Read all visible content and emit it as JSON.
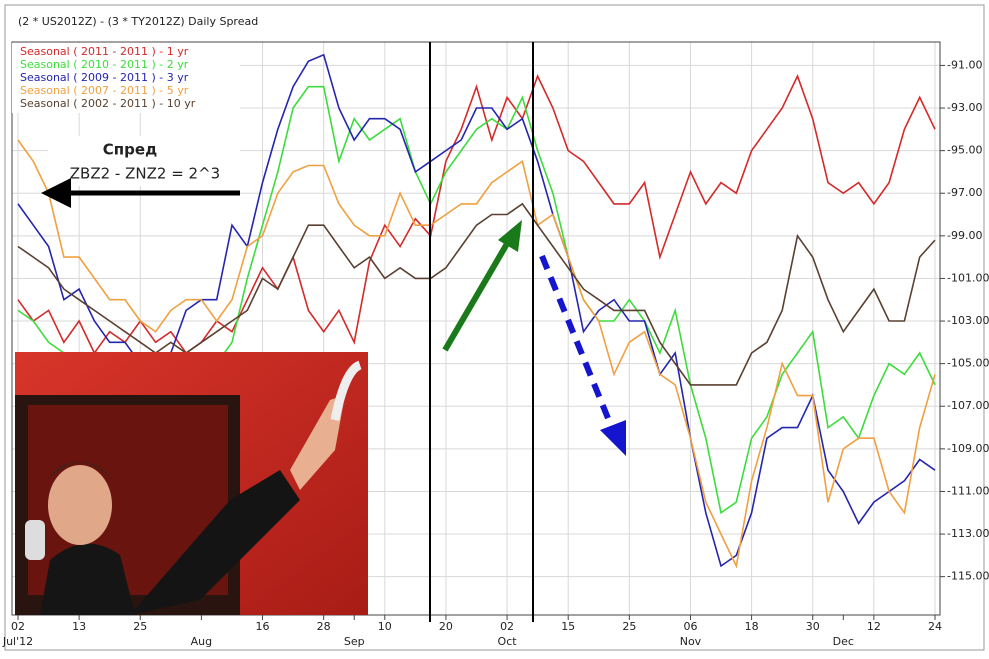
{
  "chart_data": {
    "type": "line",
    "title": "(2 * US2012Z) - (3 * TY2012Z) Daily Spread",
    "categories": [
      "02",
      null,
      null,
      null,
      "13",
      null,
      null,
      null,
      "25",
      null,
      null,
      null,
      null,
      null,
      null,
      null,
      "16",
      null,
      null,
      null,
      "28",
      null,
      null,
      null,
      "10",
      null,
      null,
      null,
      "20",
      null,
      null,
      null,
      "02",
      null,
      null,
      null,
      "15",
      null,
      null,
      null,
      "25",
      null,
      null,
      null,
      "06",
      null,
      null,
      null,
      "18",
      null,
      null,
      null,
      "30",
      null,
      null,
      null,
      "12",
      null,
      null,
      null,
      "24"
    ],
    "x_month_labels": [
      "Jul'12",
      null,
      null,
      null,
      null,
      null,
      null,
      null,
      null,
      null,
      null,
      null,
      "Aug",
      null,
      null,
      null,
      null,
      null,
      null,
      null,
      null,
      null,
      "Sep",
      null,
      null,
      null,
      null,
      null,
      null,
      null,
      null,
      null,
      "Oct",
      null,
      null,
      null,
      null,
      null,
      null,
      null,
      null,
      null,
      null,
      null,
      "Nov",
      null,
      null,
      null,
      null,
      null,
      null,
      null,
      null,
      null,
      "Dec",
      null,
      null,
      null,
      null,
      null,
      null
    ],
    "ylim": [
      -116.8,
      -89.9
    ],
    "yticks": [
      {
        "value": -91,
        "label": "-91.00"
      },
      {
        "value": -93,
        "label": "-93.00"
      },
      {
        "value": -95,
        "label": "-95.00"
      },
      {
        "value": -97,
        "label": "-97.00"
      },
      {
        "value": -99,
        "label": "-99.00"
      },
      {
        "value": -101,
        "label": "-101.00"
      },
      {
        "value": -103,
        "label": "-103.00"
      },
      {
        "value": -105,
        "label": "-105.00"
      },
      {
        "value": -107,
        "label": "-107.00"
      },
      {
        "value": -109,
        "label": "-109.00"
      },
      {
        "value": -111,
        "label": "-111.00"
      },
      {
        "value": -113,
        "label": "-113.00"
      },
      {
        "value": -115,
        "label": "-115.00"
      }
    ],
    "grid": true,
    "legend": "top-left",
    "annotations": [
      "Спред",
      "ZBZ2 - ZNZ2 = 2^3"
    ],
    "series": [
      {
        "name": "Seasonal ( 2011 - 2011 ) - 1 yr",
        "color": "#d42a2a",
        "values": [
          -102,
          -103,
          -102.5,
          -104,
          -103,
          -104.5,
          -103.5,
          -104,
          -103,
          -104,
          -103.5,
          -104.5,
          -104,
          -103,
          -103.5,
          -102,
          -100.5,
          -101.5,
          -100,
          -102.5,
          -103.5,
          -102.5,
          -104,
          -100.2,
          -98.5,
          -99.5,
          -98.2,
          -99,
          -95.5,
          -94,
          -92,
          -94.5,
          -92.5,
          -93.5,
          -91.5,
          -93,
          -95,
          -95.5,
          -96.5,
          -97.5,
          -97.5,
          -96.5,
          -100,
          -98,
          -96,
          -97.5,
          -96.5,
          -97,
          -95,
          -94,
          -93,
          -91.5,
          -93.5,
          -96.5,
          -97,
          -96.5,
          -97.5,
          -96.5,
          -94,
          -92.5,
          -94
        ]
      },
      {
        "name": "Seasonal ( 2010 - 2011 ) - 2 yr",
        "color": "#3ddc3d",
        "values": [
          -102.5,
          -103,
          -104,
          -104.5,
          -105,
          -105,
          -105.5,
          -106,
          -106,
          -106.5,
          -106,
          -106,
          -105.5,
          -105,
          -104,
          -101,
          -98.5,
          -96,
          -93,
          -92,
          -92,
          -95.5,
          -93.5,
          -94.5,
          -94,
          -93.5,
          -96,
          -97.5,
          -96,
          -95,
          -94,
          -93.5,
          -94,
          -92.5,
          -95,
          -97,
          -100,
          -102,
          -103,
          -103,
          -102,
          -103,
          -104.5,
          -102.5,
          -106,
          -108.5,
          -112,
          -111.5,
          -108.5,
          -107.5,
          -105.5,
          -104.5,
          -103.5,
          -108,
          -107.5,
          -108.5,
          -106.5,
          -105,
          -105.5,
          -104.5,
          -106
        ]
      },
      {
        "name": "Seasonal ( 2009 - 2011 ) - 3 yr",
        "color": "#2525b0",
        "values": [
          -97.5,
          -98.5,
          -99.5,
          -102,
          -101.5,
          -103,
          -104,
          -104,
          -105,
          -105.5,
          -104.5,
          -102.5,
          -102,
          -102,
          -98.5,
          -99.5,
          -96.5,
          -94,
          -92,
          -90.8,
          -90.5,
          -93,
          -94.5,
          -93.5,
          -93.5,
          -94,
          -96,
          -95.5,
          -95,
          -94.5,
          -93,
          -93,
          -94,
          -93.5,
          -95.5,
          -98,
          -100,
          -103.5,
          -102.5,
          -102,
          -103,
          -103,
          -105.5,
          -104.5,
          -108.5,
          -112,
          -114.5,
          -114,
          -112,
          -108.5,
          -108,
          -108,
          -106.5,
          -110,
          -111,
          -112.5,
          -111.5,
          -111,
          -110.5,
          -109.5,
          -110
        ]
      },
      {
        "name": "Seasonal ( 2007 - 2011 ) - 5 yr",
        "color": "#f0a040",
        "values": [
          -94.5,
          -95.5,
          -97,
          -100,
          -100,
          -101,
          -102,
          -102,
          -103,
          -103.5,
          -102.5,
          -102,
          -102,
          -103,
          -102,
          -99.5,
          -99,
          -97,
          -96,
          -95.7,
          -95.7,
          -97.5,
          -98.5,
          -99,
          -99,
          -97,
          -98.5,
          -98.5,
          -98,
          -97.5,
          -97.5,
          -96.5,
          -96,
          -95.5,
          -98.5,
          -98,
          -100,
          -102,
          -103,
          -105.5,
          -104,
          -103.5,
          -105.5,
          -106,
          -108.5,
          -111.5,
          -113,
          -114.5,
          -110.5,
          -108,
          -105,
          -106.5,
          -106.5,
          -111.5,
          -109,
          -108.5,
          -108.5,
          -111,
          -112,
          -108,
          -105.5
        ]
      },
      {
        "name": "Seasonal ( 2002 - 2011 ) - 10 yr",
        "color": "#5a4030",
        "values": [
          -99.5,
          -100,
          -100.5,
          -101.5,
          -102,
          -102.5,
          -103,
          -103.5,
          -104,
          -104.5,
          -104,
          -104.5,
          -104,
          -103.5,
          -103,
          -102.5,
          -101,
          -101.5,
          -100,
          -98.5,
          -98.5,
          -99.5,
          -100.5,
          -100,
          -101,
          -100.5,
          -101,
          -101,
          -100.5,
          -99.5,
          -98.5,
          -98,
          -98,
          -97.5,
          -98.5,
          -99.5,
          -100.5,
          -101.5,
          -102,
          -102.5,
          -102.5,
          -102.5,
          -104,
          -105,
          -106,
          -106,
          -106,
          -106,
          -104.5,
          -104,
          -102.5,
          -99,
          -100,
          -102,
          -103.5,
          -102.5,
          -101.5,
          -103,
          -103,
          -100,
          -99.2
        ]
      }
    ]
  }
}
